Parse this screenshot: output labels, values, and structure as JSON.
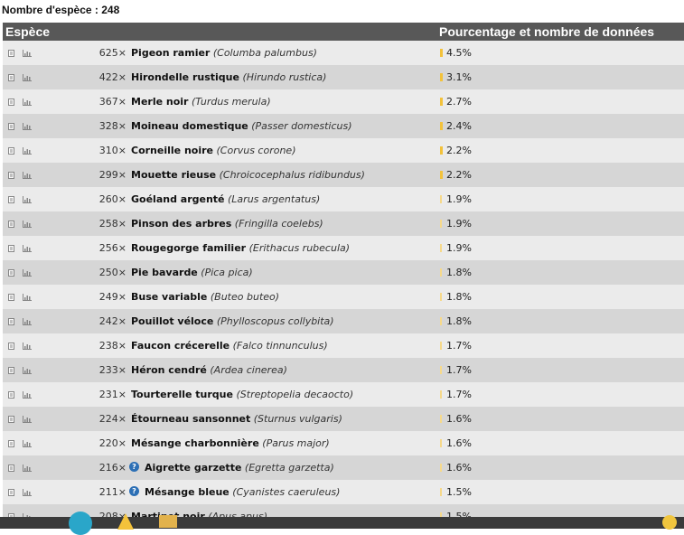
{
  "summary": {
    "species_count_label": "Nombre d'espèce : 248"
  },
  "table": {
    "col_species": "Espèce",
    "col_percentage": "Pourcentage et nombre de données",
    "rows": [
      {
        "count": "625×",
        "common": "Pigeon ramier",
        "latin": "(Columba palumbus)",
        "pct": "4.5%",
        "pct_value": 4.5,
        "info": false
      },
      {
        "count": "422×",
        "common": "Hirondelle rustique",
        "latin": "(Hirundo rustica)",
        "pct": "3.1%",
        "pct_value": 3.1,
        "info": false
      },
      {
        "count": "367×",
        "common": "Merle noir",
        "latin": "(Turdus merula)",
        "pct": "2.7%",
        "pct_value": 2.7,
        "info": false
      },
      {
        "count": "328×",
        "common": "Moineau domestique",
        "latin": "(Passer domesticus)",
        "pct": "2.4%",
        "pct_value": 2.4,
        "info": false
      },
      {
        "count": "310×",
        "common": "Corneille noire",
        "latin": "(Corvus corone)",
        "pct": "2.2%",
        "pct_value": 2.2,
        "info": false
      },
      {
        "count": "299×",
        "common": "Mouette rieuse",
        "latin": "(Chroicocephalus ridibundus)",
        "pct": "2.2%",
        "pct_value": 2.2,
        "info": false
      },
      {
        "count": "260×",
        "common": "Goéland argenté",
        "latin": "(Larus argentatus)",
        "pct": "1.9%",
        "pct_value": 1.9,
        "info": false
      },
      {
        "count": "258×",
        "common": "Pinson des arbres",
        "latin": "(Fringilla coelebs)",
        "pct": "1.9%",
        "pct_value": 1.9,
        "info": false
      },
      {
        "count": "256×",
        "common": "Rougegorge familier",
        "latin": "(Erithacus rubecula)",
        "pct": "1.9%",
        "pct_value": 1.9,
        "info": false
      },
      {
        "count": "250×",
        "common": "Pie bavarde",
        "latin": "(Pica pica)",
        "pct": "1.8%",
        "pct_value": 1.8,
        "info": false
      },
      {
        "count": "249×",
        "common": "Buse variable",
        "latin": "(Buteo buteo)",
        "pct": "1.8%",
        "pct_value": 1.8,
        "info": false
      },
      {
        "count": "242×",
        "common": "Pouillot véloce",
        "latin": "(Phylloscopus collybita)",
        "pct": "1.8%",
        "pct_value": 1.8,
        "info": false
      },
      {
        "count": "238×",
        "common": "Faucon crécerelle",
        "latin": "(Falco tinnunculus)",
        "pct": "1.7%",
        "pct_value": 1.7,
        "info": false
      },
      {
        "count": "233×",
        "common": "Héron cendré",
        "latin": "(Ardea cinerea)",
        "pct": "1.7%",
        "pct_value": 1.7,
        "info": false
      },
      {
        "count": "231×",
        "common": "Tourterelle turque",
        "latin": "(Streptopelia decaocto)",
        "pct": "1.7%",
        "pct_value": 1.7,
        "info": false
      },
      {
        "count": "224×",
        "common": "Étourneau sansonnet",
        "latin": "(Sturnus vulgaris)",
        "pct": "1.6%",
        "pct_value": 1.6,
        "info": false
      },
      {
        "count": "220×",
        "common": "Mésange charbonnière",
        "latin": "(Parus major)",
        "pct": "1.6%",
        "pct_value": 1.6,
        "info": false
      },
      {
        "count": "216×",
        "common": "Aigrette garzette",
        "latin": "(Egretta garzetta)",
        "pct": "1.6%",
        "pct_value": 1.6,
        "info": true
      },
      {
        "count": "211×",
        "common": "Mésange bleue",
        "latin": "(Cyanistes caeruleus)",
        "pct": "1.5%",
        "pct_value": 1.5,
        "info": true
      },
      {
        "count": "208×",
        "common": "Martinet noir",
        "latin": "(Apus apus)",
        "pct": "1.5%",
        "pct_value": 1.5,
        "info": false
      }
    ]
  },
  "icons": {
    "row_sheet": "sheet-icon",
    "row_chart": "bar-chart-icon",
    "info": "info-icon"
  },
  "colors": {
    "header_bg": "#585858",
    "bar": "#f3c23b",
    "row_odd": "#ebebeb",
    "row_even": "#d6d6d6",
    "info": "#2c6fb5"
  }
}
